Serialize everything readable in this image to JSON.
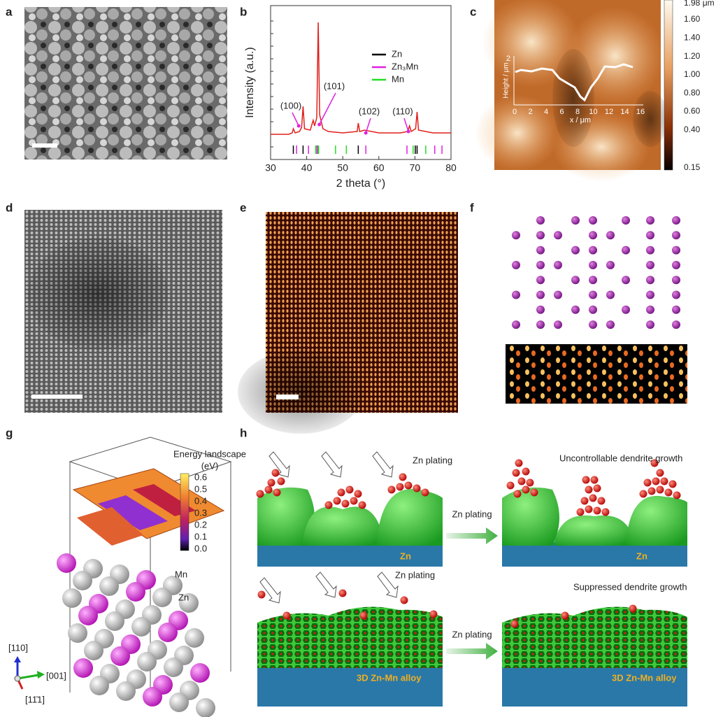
{
  "panels": {
    "a": {
      "label": "a"
    },
    "b": {
      "label": "b"
    },
    "c": {
      "label": "c",
      "colorbar_ticks": [
        "1.98 μm",
        "1.60",
        "1.40",
        "1.20",
        "1.00",
        "0.80",
        "0.60",
        "0.40",
        "0.15"
      ],
      "profile_y_label": "Height / μm",
      "profile_y_tick": "2",
      "profile_x_ticks": [
        "0",
        "2",
        "4",
        "6",
        "8",
        "10",
        "12",
        "14",
        "16"
      ],
      "profile_x_label": "x / μm"
    },
    "d": {
      "label": "d"
    },
    "e": {
      "label": "e"
    },
    "f": {
      "label": "f"
    },
    "g": {
      "label": "g",
      "title": "Energy landscape",
      "unit": "(eV)",
      "colorbar_ticks": [
        "0.6",
        "0.5",
        "0.4",
        "0.3",
        "0.2",
        "0.1",
        "0.0"
      ],
      "atom_labels": [
        "Mn",
        "Zn"
      ],
      "axes_labels": [
        "[110]",
        "[001]",
        "[11̄1]"
      ]
    },
    "h": {
      "label": "h",
      "top_left_plating": [
        "Zn plating"
      ],
      "top_right_title": "Uncontrollable dendrite growth",
      "top_arrow": "Zn plating",
      "top_left_substrate": "Zn",
      "top_right_substrate": "Zn",
      "bottom_left_plating": "Zn plating",
      "bottom_right_title": "Suppressed dendrite growth",
      "bottom_arrow": "Zn plating",
      "bottom_left_substrate": "3D Zn-Mn alloy",
      "bottom_right_substrate": "3D Zn-Mn alloy"
    }
  },
  "chart_data": {
    "type": "line",
    "x_label": "2 theta (°)",
    "y_label": "Intensity (a.u.)",
    "color": "#e0201b",
    "xlim": [
      30,
      80
    ],
    "xticks": [
      30,
      40,
      50,
      60,
      70,
      80
    ],
    "ylim": [
      -10,
      100
    ],
    "x": [
      30,
      35,
      36,
      36.3,
      36.8,
      38,
      38.6,
      39,
      39.4,
      41,
      41.8,
      42.2,
      42.8,
      43.2,
      43.6,
      44.5,
      46,
      50,
      54,
      54.3,
      54.7,
      56,
      60,
      66,
      68,
      68.5,
      69,
      70.2,
      70.6,
      71,
      75,
      80
    ],
    "values": [
      8,
      8,
      9,
      12,
      9,
      10,
      13,
      28,
      12,
      11,
      18,
      14,
      20,
      88,
      22,
      12,
      10,
      9,
      10,
      16,
      10,
      11,
      9,
      9,
      10,
      14,
      10,
      12,
      24,
      11,
      9,
      9
    ],
    "references": [
      {
        "name": "Zn",
        "color": "#000000",
        "x": [
          36.3,
          39,
          43.2,
          54.3,
          70.1,
          70.6
        ]
      },
      {
        "name": "Zn₃Mn",
        "color": "#e020e0",
        "x": [
          37.2,
          40.5,
          42.8,
          56.4,
          67.8,
          75.5,
          77.5
        ]
      },
      {
        "name": "Mn",
        "color": "#22dd22",
        "x": [
          42.5,
          43.3,
          48,
          51,
          69.5,
          73
        ]
      }
    ],
    "annotations": [
      {
        "text": "(100)",
        "x": 37.8
      },
      {
        "text": "(101)",
        "x": 43.5
      },
      {
        "text": "(102)",
        "x": 56.4
      },
      {
        "text": "(110)",
        "x": 68.2
      }
    ]
  }
}
